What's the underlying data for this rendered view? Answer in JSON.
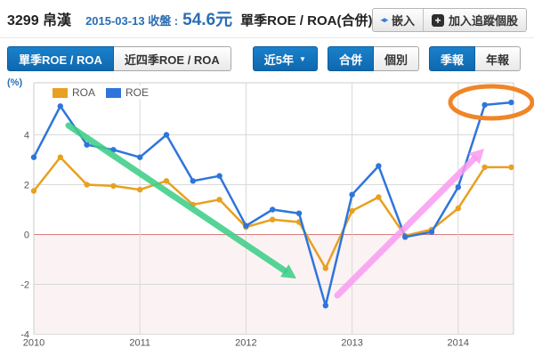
{
  "header": {
    "stock_code": "3299",
    "stock_name": "帛漢",
    "date": "2015-03-13",
    "close_label": "收盤 :",
    "close_price": "54.6元",
    "title": "單季ROE / ROA(合併)",
    "embed_button": "嵌入",
    "track_button": "加入追蹤個股"
  },
  "toolbar": {
    "tab_single_quarter": "單季ROE / ROA",
    "tab_last4_quarters": "近四季ROE / ROA",
    "range_dropdown": "近5年",
    "consolidated_button": "合併",
    "individual_button": "個別",
    "quarterly_button": "季報",
    "yearly_button": "年報"
  },
  "icons": {
    "embed": "◂▸",
    "plus": "+",
    "caret": "▼"
  },
  "colors": {
    "accent_blue": "#1173BE",
    "link_blue": "#2A6DB4",
    "roa": "#E8A020",
    "roe": "#2E75DB",
    "zero_line": "#D97C7C",
    "negative_region": "#FBF3F3",
    "gridline": "#D9D9D9"
  },
  "chart_data": {
    "type": "line",
    "title": "單季ROE / ROA(合併)",
    "unit": "(%)",
    "x_tick_labels": [
      "2010",
      "2011",
      "2012",
      "2013",
      "2014"
    ],
    "quarters": [
      "2010Q1",
      "2010Q2",
      "2010Q3",
      "2010Q4",
      "2011Q1",
      "2011Q2",
      "2011Q3",
      "2011Q4",
      "2012Q1",
      "2012Q2",
      "2012Q3",
      "2012Q4",
      "2013Q1",
      "2013Q2",
      "2013Q3",
      "2013Q4",
      "2014Q1",
      "2014Q2",
      "2014Q3"
    ],
    "series": [
      {
        "name": "ROA",
        "color": "#E8A020",
        "values": [
          1.75,
          3.1,
          2.0,
          1.95,
          1.8,
          2.15,
          1.2,
          1.4,
          0.3,
          0.6,
          0.5,
          -1.35,
          0.95,
          1.5,
          -0.05,
          0.2,
          1.05,
          2.7,
          2.7
        ]
      },
      {
        "name": "ROE",
        "color": "#2E75DB",
        "values": [
          3.1,
          5.15,
          3.6,
          3.4,
          3.1,
          4.0,
          2.15,
          2.35,
          0.35,
          1.0,
          0.85,
          -2.85,
          1.6,
          2.75,
          -0.1,
          0.1,
          1.9,
          5.2,
          5.3
        ]
      }
    ],
    "y_ticks": [
      4,
      2,
      0,
      -2,
      -4
    ],
    "ylim": [
      -4.2,
      6.1
    ],
    "grid": true,
    "legend_position": "top-left",
    "zero_line_color": "#D97C7C",
    "negative_region_color": "#FBF3F3",
    "annotations": {
      "green_arrow": {
        "from": [
          77,
          141
        ],
        "to": [
          333,
          313
        ],
        "color": "rgba(62,206,136,0.88)"
      },
      "pink_arrow": {
        "from": [
          379,
          332
        ],
        "to": [
          544,
          167
        ],
        "color": "rgba(249,154,240,0.85)"
      },
      "orange_ellipse": {
        "cx": 552,
        "cy": 115,
        "rx": 46,
        "ry": 18,
        "color": "#F08527"
      }
    }
  }
}
